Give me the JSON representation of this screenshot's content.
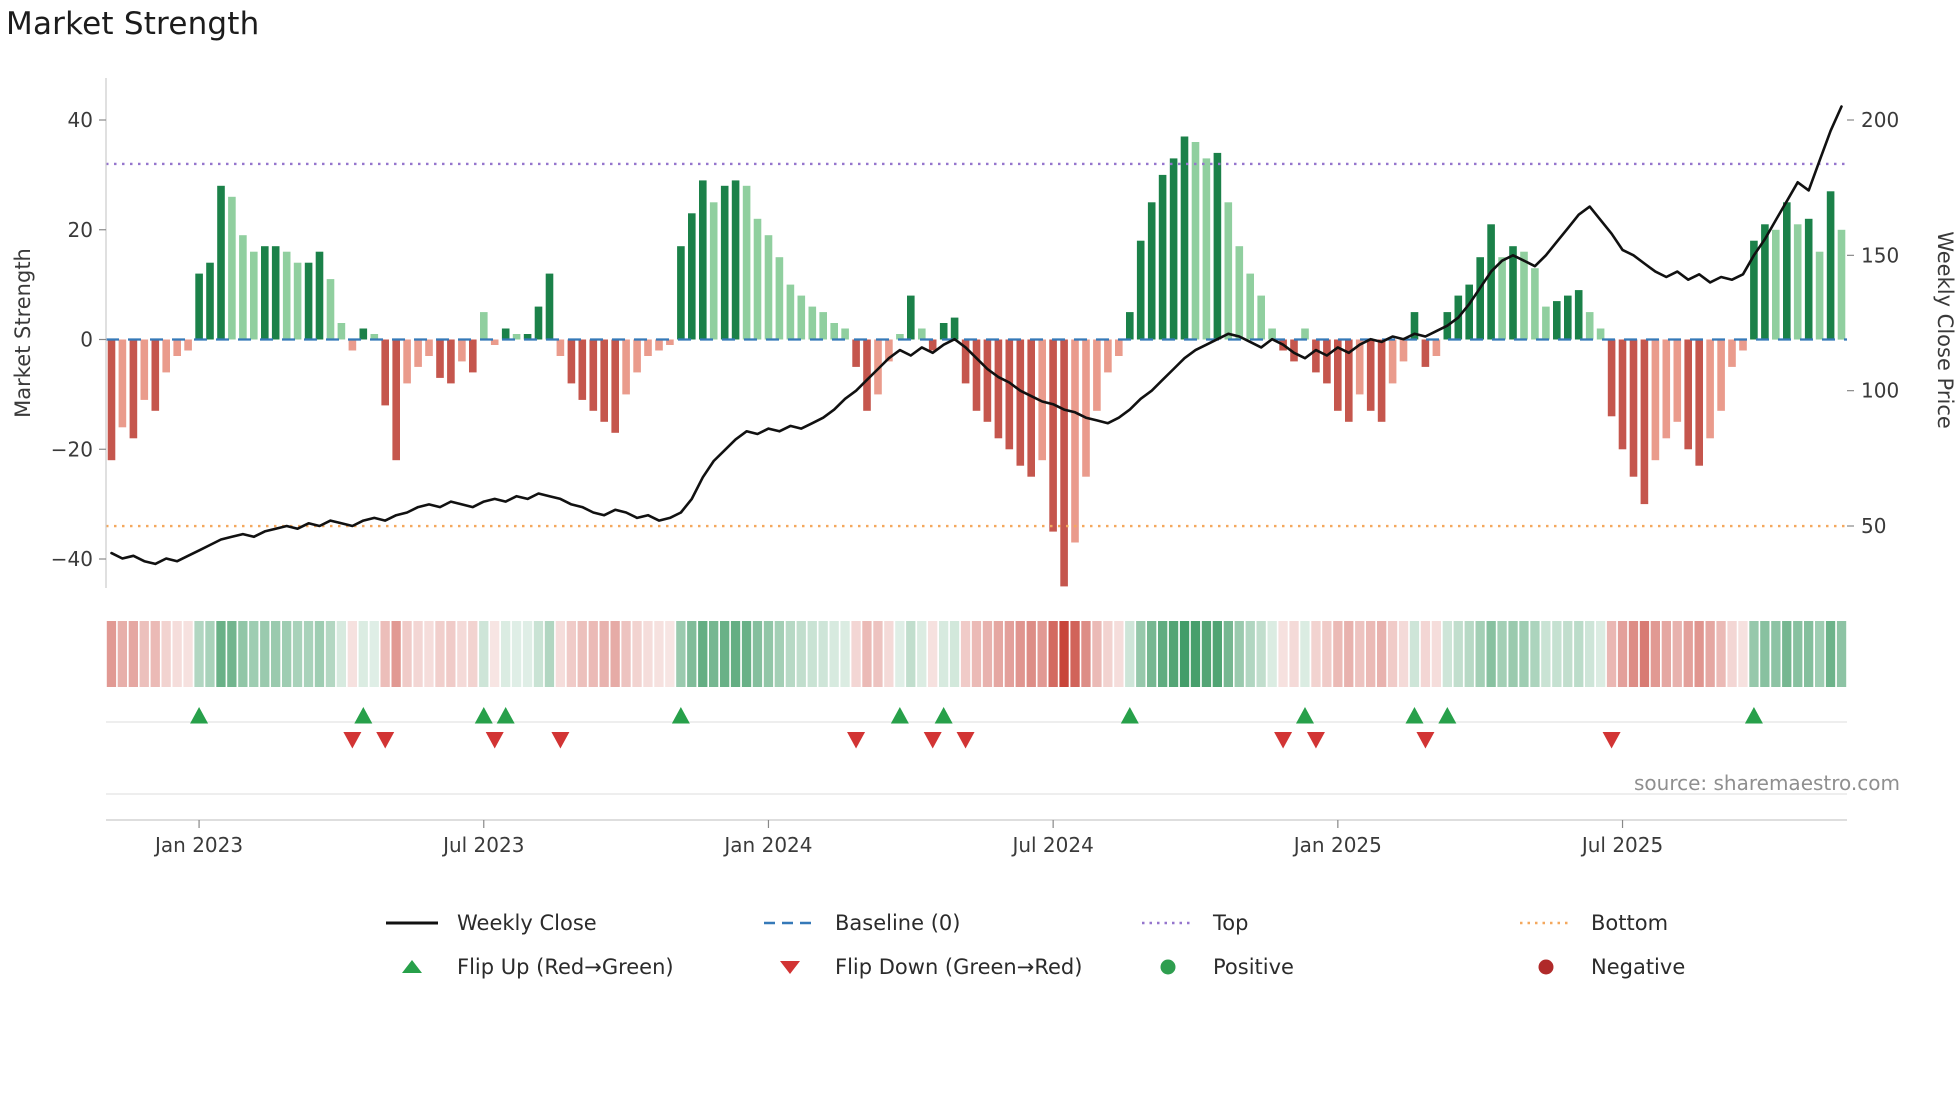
{
  "title": "Market Strength",
  "source": "source: sharemaestro.com",
  "colors": {
    "pos_dark": "#1b8149",
    "pos_light": "#90cf9f",
    "neg_dark": "#c5564d",
    "neg_light": "#ea9b8c",
    "heat_pos": "#1f8a4c",
    "heat_neg": "#c8453a",
    "price_line": "#111111",
    "baseline": "#3579b8",
    "top": "#9575cd",
    "bottom": "#f4a85e",
    "flip_up": "#27a04a",
    "flip_down": "#d23434",
    "positive_dot": "#2e9e4f",
    "negative_dot": "#b02a2a",
    "axis_text": "#3a3a3a",
    "source_text": "#8f8f8f",
    "spine": "#cccccc",
    "marker_line": "#e4e4e4"
  },
  "legend": {
    "items": [
      {
        "label": "Weekly Close",
        "swatch": "line",
        "color_key": "price_line"
      },
      {
        "label": "Baseline (0)",
        "swatch": "dash",
        "color_key": "baseline"
      },
      {
        "label": "Top",
        "swatch": "dot",
        "color_key": "top"
      },
      {
        "label": "Bottom",
        "swatch": "dot",
        "color_key": "bottom"
      },
      {
        "label": "Flip Up (Red→Green)",
        "swatch": "tri-up",
        "color_key": "flip_up"
      },
      {
        "label": "Flip Down (Green→Red)",
        "swatch": "tri-down",
        "color_key": "flip_down"
      },
      {
        "label": "Positive",
        "swatch": "circle",
        "color_key": "positive_dot"
      },
      {
        "label": "Negative",
        "swatch": "circle",
        "color_key": "negative_dot"
      }
    ]
  },
  "chart_data": {
    "type": "bar",
    "subtype": "weekly oscillator bars + price line overlay + intensity heatmap strip + flip markers",
    "title": "Market Strength",
    "x_unit": "week",
    "x_tick_labels": [
      "Jan 2023",
      "Jul 2023",
      "Jan 2024",
      "Jul 2024",
      "Jan 2025",
      "Jul 2025"
    ],
    "x_tick_week_index": [
      8,
      34,
      60,
      86,
      112,
      138
    ],
    "left_axis": {
      "label": "Market Strength",
      "ticks": [
        40,
        20,
        0,
        -20,
        -40
      ],
      "lim": [
        -46,
        47
      ]
    },
    "right_axis": {
      "label": "Weekly Close Price",
      "ticks": [
        200,
        150,
        100,
        50
      ],
      "lim": [
        27,
        215
      ]
    },
    "baseline": 0,
    "top_level": 32,
    "bottom_level": -34,
    "grid": false,
    "legend_position": "bottom",
    "series": [
      {
        "name": "Market Strength",
        "type": "bar",
        "axis": "left",
        "values": [
          -22,
          -16,
          -18,
          -11,
          -13,
          -6,
          -3,
          -2,
          12,
          14,
          28,
          26,
          19,
          16,
          17,
          17,
          16,
          14,
          14,
          16,
          11,
          3,
          -2,
          2,
          1,
          -12,
          -22,
          -8,
          -5,
          -3,
          -7,
          -8,
          -4,
          -6,
          5,
          -1,
          2,
          1,
          1,
          6,
          12,
          -3,
          -8,
          -11,
          -13,
          -15,
          -17,
          -10,
          -6,
          -3,
          -2,
          -1,
          17,
          23,
          29,
          25,
          28,
          29,
          28,
          22,
          19,
          15,
          10,
          8,
          6,
          5,
          3,
          2,
          -5,
          -13,
          -10,
          -4,
          1,
          8,
          2,
          -2,
          3,
          4,
          -8,
          -13,
          -15,
          -18,
          -20,
          -23,
          -25,
          -22,
          -35,
          -45,
          -37,
          -25,
          -13,
          -6,
          -3,
          5,
          18,
          25,
          30,
          33,
          37,
          36,
          33,
          34,
          25,
          17,
          12,
          8,
          2,
          -2,
          -4,
          2,
          -6,
          -8,
          -13,
          -15,
          -10,
          -13,
          -15,
          -8,
          -4,
          5,
          -5,
          -3,
          5,
          8,
          10,
          15,
          21,
          15,
          17,
          16,
          13,
          6,
          7,
          8,
          9,
          5,
          2,
          -14,
          -20,
          -25,
          -30,
          -22,
          -18,
          -15,
          -20,
          -23,
          -18,
          -13,
          -5,
          -2,
          18,
          21,
          20,
          25,
          21,
          22,
          16,
          27,
          20
        ]
      },
      {
        "name": "Weekly Close",
        "type": "line",
        "axis": "right",
        "values": [
          40,
          38,
          39,
          37,
          36,
          38,
          37,
          39,
          41,
          43,
          45,
          46,
          47,
          46,
          48,
          49,
          50,
          49,
          51,
          50,
          52,
          51,
          50,
          52,
          53,
          52,
          54,
          55,
          57,
          58,
          57,
          59,
          58,
          57,
          59,
          60,
          59,
          61,
          60,
          62,
          61,
          60,
          58,
          57,
          55,
          54,
          56,
          55,
          53,
          54,
          52,
          53,
          55,
          60,
          68,
          74,
          78,
          82,
          85,
          84,
          86,
          85,
          87,
          86,
          88,
          90,
          93,
          97,
          100,
          104,
          108,
          112,
          115,
          113,
          116,
          114,
          117,
          119,
          116,
          112,
          108,
          105,
          103,
          100,
          98,
          96,
          95,
          93,
          92,
          90,
          89,
          88,
          90,
          93,
          97,
          100,
          104,
          108,
          112,
          115,
          117,
          119,
          121,
          120,
          118,
          116,
          119,
          117,
          114,
          112,
          115,
          113,
          116,
          114,
          117,
          119,
          118,
          120,
          119,
          121,
          120,
          122,
          124,
          127,
          132,
          138,
          144,
          148,
          150,
          148,
          146,
          150,
          155,
          160,
          165,
          168,
          163,
          158,
          152,
          150,
          147,
          144,
          142,
          144,
          141,
          143,
          140,
          142,
          141,
          143,
          150,
          156,
          163,
          170,
          177,
          174,
          185,
          196,
          205
        ]
      }
    ],
    "heatmap_strip": "color intensity of each cell mirrors the Market Strength bar value (green positive, red negative)",
    "flip_up_weeks": [
      8,
      23,
      34,
      36,
      52,
      72,
      76,
      93,
      109,
      119,
      122,
      150
    ],
    "flip_down_weeks": [
      22,
      25,
      35,
      41,
      68,
      75,
      78,
      107,
      110,
      120,
      137
    ]
  }
}
